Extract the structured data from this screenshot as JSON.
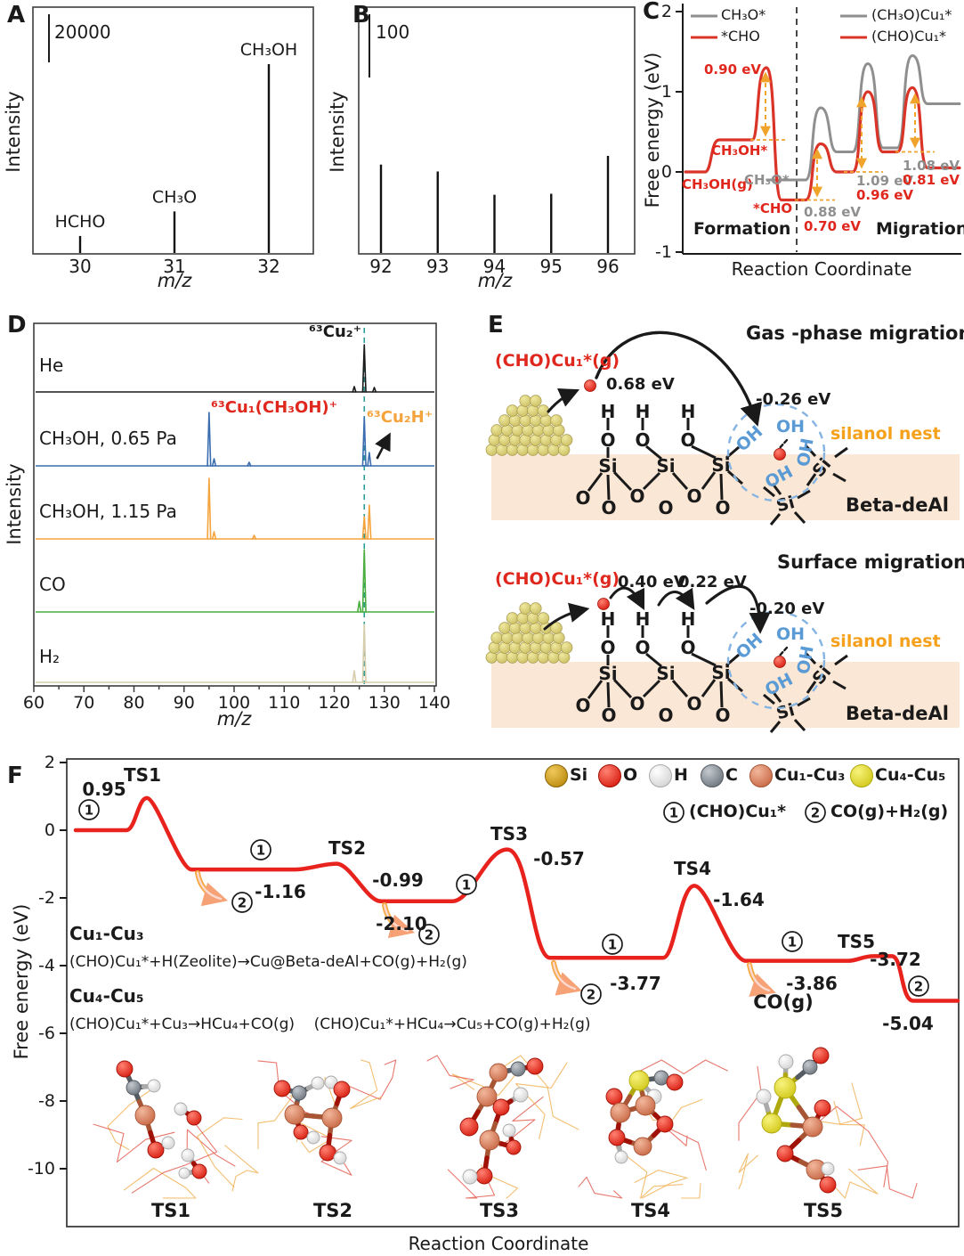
{
  "panels": {
    "a": "A",
    "b": "B",
    "c": "C",
    "d": "D",
    "e": "E",
    "f": "F"
  },
  "panel_e": {
    "top": {
      "title": "Gas -phase migration",
      "species": "(CHO)Cu₁*(g)",
      "e_desorb": "0.68 eV",
      "e_trap": "-0.26 eV",
      "nest": "silanol nest",
      "support": "Beta-deAl"
    },
    "bottom": {
      "title": "Surface migration",
      "species": "(CHO)Cu₁*(g)",
      "e_hop1": "0.40 eV",
      "e_hop2": "0.22 eV",
      "e_trap": "-0.20 eV",
      "nest": "silanol nest",
      "support": "Beta-deAl"
    },
    "atoms": {
      "h": "H",
      "o": "O",
      "si": "Si",
      "oh": "OH"
    }
  },
  "chart_data": [
    {
      "panel": "A",
      "type": "bar",
      "xlabel": "m/z",
      "ylabel": "Intensity",
      "scale_bar": "20000",
      "x": [
        30,
        31,
        32
      ],
      "labels": [
        "HCHO",
        "CH₃O",
        "CH₃OH"
      ],
      "rel_intensity": [
        0.09,
        0.22,
        1.0
      ]
    },
    {
      "panel": "B",
      "type": "bar",
      "xlabel": "m/z",
      "ylabel": "Intensity",
      "scale_bar": "100",
      "x": [
        92,
        93,
        94,
        95,
        96
      ],
      "labels": [
        "",
        "",
        "",
        "",
        ""
      ],
      "rel_intensity": [
        0.91,
        0.84,
        0.6,
        0.61,
        1.0
      ]
    },
    {
      "panel": "C",
      "type": "line",
      "xlabel": "Reaction Coordinate",
      "ylabel": "Free energy (eV)",
      "ylim": [
        -1,
        2
      ],
      "yticks": [
        2,
        1,
        0,
        -1
      ],
      "regions": [
        "Formation",
        "Migration"
      ],
      "legend": [
        {
          "label": "CH₃O*",
          "color": "#8f8f8f"
        },
        {
          "label": "*CHO",
          "color": "#da3428"
        },
        {
          "label": "(CH₃O)Cu₁*",
          "color": "#8f8f8f"
        },
        {
          "label": "(CHO)Cu₁*",
          "color": "#da3428"
        }
      ],
      "states": {
        "gas": "CH₃OH(g)",
        "ads": "CH₃OH*",
        "methoxy": "CH₃O*",
        "formyl": "*CHO"
      },
      "formation": {
        "red_levels": [
          0,
          0.4,
          1.3,
          -0.35
        ],
        "gray_level": -0.1,
        "barrier": "0.90 eV"
      },
      "migration": {
        "red": {
          "start": -0.35,
          "peaks": [
            0.35,
            1.0,
            1.05
          ],
          "levels": [
            0.0,
            0.25,
            0.05
          ]
        },
        "gray": {
          "start": -0.1,
          "peaks": [
            0.8,
            1.35,
            1.45
          ],
          "levels": [
            0.25,
            0.3,
            0.85
          ]
        },
        "barriers": [
          {
            "gray": "0.88 eV",
            "red": "0.70 eV"
          },
          {
            "gray": "1.09 eV",
            "red": "0.96 eV"
          },
          {
            "gray": "1.08 eV",
            "red": "0.81 eV"
          }
        ]
      }
    },
    {
      "panel": "D",
      "type": "line",
      "xlabel": "m/z",
      "ylabel": "Intensity",
      "xlim": [
        60,
        140
      ],
      "xticks": [
        60,
        70,
        80,
        90,
        100,
        110,
        120,
        130,
        140
      ],
      "dashed_line_mz": 126,
      "traces": [
        {
          "name": "He",
          "color": "#1a1a1a",
          "peaks": [
            [
              126,
              53
            ],
            [
              124,
              6
            ],
            [
              128,
              5
            ]
          ]
        },
        {
          "name": "CH₃OH, 0.65 Pa",
          "color": "#3a6db0",
          "peaks": [
            [
              95,
              60
            ],
            [
              96,
              8
            ],
            [
              103,
              4
            ],
            [
              126,
              55
            ],
            [
              127,
              15
            ]
          ]
        },
        {
          "name": "CH₃OH, 1.15 Pa",
          "color": "#f5a33c",
          "peaks": [
            [
              95,
              68
            ],
            [
              96,
              8
            ],
            [
              104,
              4
            ],
            [
              126,
              25
            ],
            [
              127,
              38
            ]
          ]
        },
        {
          "name": "CO",
          "color": "#4aad3e",
          "peaks": [
            [
              126,
              70
            ],
            [
              125,
              12
            ]
          ]
        },
        {
          "name": "H₂",
          "color": "#d6cdaa",
          "peaks": [
            [
              126,
              65
            ],
            [
              124,
              13
            ]
          ]
        }
      ],
      "peak_labels": [
        {
          "text": "⁶³Cu₂⁺",
          "color": "#1a1a1a"
        },
        {
          "text": "⁶³Cu₁(CH₃OH)⁺",
          "color": "#e0271d"
        },
        {
          "text": "⁶³Cu₂H⁺",
          "color": "#f5a33c"
        }
      ]
    },
    {
      "panel": "F",
      "type": "line",
      "xlabel": "Reaction Coordinate",
      "ylabel": "Free energy (eV)",
      "ylim": [
        -10.5,
        2
      ],
      "yticks": [
        2,
        0,
        -2,
        -4,
        -6,
        -8,
        -10
      ],
      "ts": [
        {
          "name": "TS1",
          "e": 0.95,
          "label": "0.95"
        },
        {
          "name": "TS2",
          "e": -0.99,
          "label": "-0.99"
        },
        {
          "name": "TS3",
          "e": -0.57,
          "label": "-0.57"
        },
        {
          "name": "TS4",
          "e": -1.64,
          "label": "-1.64"
        },
        {
          "name": "TS5",
          "e": -3.72,
          "label": "-3.72"
        }
      ],
      "levels": [
        {
          "e": 0,
          "label": ""
        },
        {
          "e": -1.16,
          "label": "-1.16"
        },
        {
          "e": -2.1,
          "label": "-2.10"
        },
        {
          "e": -3.77,
          "label": "-3.77"
        },
        {
          "e": -3.86,
          "label": "-3.86"
        },
        {
          "e": -5.04,
          "label": "-5.04"
        }
      ],
      "co_release": "CO(g)",
      "legend_atoms": [
        {
          "label": "Si",
          "kind": "si"
        },
        {
          "label": "O",
          "kind": "o"
        },
        {
          "label": "H",
          "kind": "h"
        },
        {
          "label": "C",
          "kind": "c"
        },
        {
          "label": "Cu₁-Cu₃",
          "kind": "cu13"
        },
        {
          "label": "Cu₄-Cu₅",
          "kind": "cu45"
        }
      ],
      "species": [
        {
          "mark": "1",
          "label": "(CHO)Cu₁*"
        },
        {
          "mark": "2",
          "label": "CO(g)+H₂(g)"
        }
      ],
      "reactions": [
        {
          "title": "Cu₁-Cu₃",
          "eq": "(CHO)Cu₁*+H(Zeolite)→Cu@Beta-deAl+CO(g)+H₂(g)"
        },
        {
          "title": "Cu₄-Cu₅",
          "eq": "(CHO)Cu₁*+Cu₃→HCu₄+CO(g)    (CHO)Cu₁*+HCu₄→Cu₅+CO(g)+H₂(g)"
        }
      ],
      "structures": [
        {
          "name": "TS1",
          "atoms": [
            [
              140,
              1200,
              "o",
              9
            ],
            [
              150,
              1221,
              "c",
              8
            ],
            [
              173,
              1219,
              "h",
              7
            ],
            [
              163,
              1252,
              "cu13",
              11
            ],
            [
              175,
              1291,
              "o",
              9
            ],
            [
              189,
              1283,
              "h",
              7
            ],
            [
              203,
              1245,
              "h",
              7
            ],
            [
              218,
              1255,
              "o",
              8
            ],
            [
              211,
              1297,
              "h",
              7
            ],
            [
              224,
              1315,
              "o",
              8
            ],
            [
              207,
              1317,
              "h",
              6
            ]
          ],
          "bonds": [
            [
              0,
              1
            ],
            [
              1,
              2
            ],
            [
              1,
              3
            ],
            [
              3,
              4
            ],
            [
              4,
              5
            ],
            [
              6,
              7
            ],
            [
              8,
              9
            ],
            [
              9,
              10
            ]
          ]
        },
        {
          "name": "TS2",
          "atoms": [
            [
              317,
              1222,
              "o",
              9
            ],
            [
              336,
              1227,
              "c",
              8
            ],
            [
              357,
              1216,
              "h",
              7
            ],
            [
              372,
              1215,
              "h",
              7
            ],
            [
              384,
              1223,
              "o",
              9
            ],
            [
              331,
              1251,
              "cu13",
              11
            ],
            [
              373,
              1255,
              "cu13",
              11
            ],
            [
              338,
              1271,
              "o",
              8
            ],
            [
              352,
              1277,
              "h",
              7
            ],
            [
              368,
              1294,
              "o",
              9
            ],
            [
              382,
              1300,
              "h",
              7
            ]
          ],
          "bonds": [
            [
              0,
              1
            ],
            [
              1,
              2
            ],
            [
              1,
              5
            ],
            [
              5,
              6
            ],
            [
              5,
              7
            ],
            [
              7,
              8
            ],
            [
              6,
              4
            ],
            [
              6,
              9
            ],
            [
              9,
              10
            ],
            [
              3,
              4
            ]
          ]
        },
        {
          "name": "TS3",
          "atoms": [
            [
              560,
              1204,
              "cu13",
              10
            ],
            [
              582,
              1200,
              "c",
              8
            ],
            [
              601,
              1197,
              "o",
              9
            ],
            [
              585,
              1229,
              "h",
              8
            ],
            [
              547,
              1231,
              "cu13",
              11
            ],
            [
              563,
              1243,
              "o",
              9
            ],
            [
              527,
              1265,
              "o",
              10
            ],
            [
              550,
              1280,
              "cu13",
              11
            ],
            [
              572,
              1269,
              "h",
              7
            ],
            [
              577,
              1288,
              "o",
              8
            ],
            [
              544,
              1320,
              "o",
              9
            ],
            [
              528,
              1321,
              "h",
              8
            ]
          ],
          "bonds": [
            [
              0,
              1
            ],
            [
              1,
              2
            ],
            [
              0,
              4
            ],
            [
              4,
              5
            ],
            [
              4,
              6
            ],
            [
              5,
              7
            ],
            [
              7,
              9
            ],
            [
              7,
              10
            ],
            [
              10,
              11
            ],
            [
              3,
              5
            ],
            [
              8,
              9
            ]
          ]
        },
        {
          "name": "TS4",
          "atoms": [
            [
              718,
              1213,
              "cu45",
              11
            ],
            [
              743,
              1210,
              "c",
              8
            ],
            [
              758,
              1215,
              "o",
              9
            ],
            [
              735,
              1231,
              "h",
              8
            ],
            [
              690,
              1231,
              "o",
              9
            ],
            [
              697,
              1249,
              "cu13",
              11
            ],
            [
              725,
              1241,
              "cu13",
              11
            ],
            [
              747,
              1262,
              "o",
              9
            ],
            [
              693,
              1277,
              "o",
              9
            ],
            [
              722,
              1287,
              "cu13",
              10
            ],
            [
              698,
              1299,
              "h",
              7
            ]
          ],
          "bonds": [
            [
              0,
              1
            ],
            [
              1,
              2
            ],
            [
              0,
              3
            ],
            [
              0,
              5
            ],
            [
              0,
              6
            ],
            [
              5,
              6
            ],
            [
              6,
              7
            ],
            [
              5,
              4
            ],
            [
              5,
              8
            ],
            [
              9,
              8
            ],
            [
              9,
              7
            ],
            [
              8,
              10
            ]
          ]
        },
        {
          "name": "TS5",
          "atoms": [
            [
              883,
              1192,
              "h",
              8
            ],
            [
              910,
              1198,
              "c",
              8
            ],
            [
              922,
              1185,
              "o",
              9
            ],
            [
              882,
              1221,
              "cu45",
              12
            ],
            [
              858,
              1231,
              "h",
              8
            ],
            [
              867,
              1261,
              "cu45",
              11
            ],
            [
              913,
              1265,
              "cu13",
              11
            ],
            [
              924,
              1244,
              "o",
              9
            ],
            [
              882,
              1295,
              "o",
              9
            ],
            [
              917,
              1313,
              "cu13",
              11
            ],
            [
              930,
              1312,
              "h",
              7
            ],
            [
              930,
              1330,
              "o",
              9
            ]
          ],
          "bonds": [
            [
              0,
              3
            ],
            [
              3,
              1
            ],
            [
              1,
              2
            ],
            [
              3,
              5
            ],
            [
              3,
              6
            ],
            [
              5,
              6
            ],
            [
              5,
              4
            ],
            [
              6,
              7
            ],
            [
              6,
              8
            ],
            [
              8,
              9
            ],
            [
              9,
              11
            ],
            [
              9,
              10
            ]
          ]
        }
      ]
    }
  ]
}
